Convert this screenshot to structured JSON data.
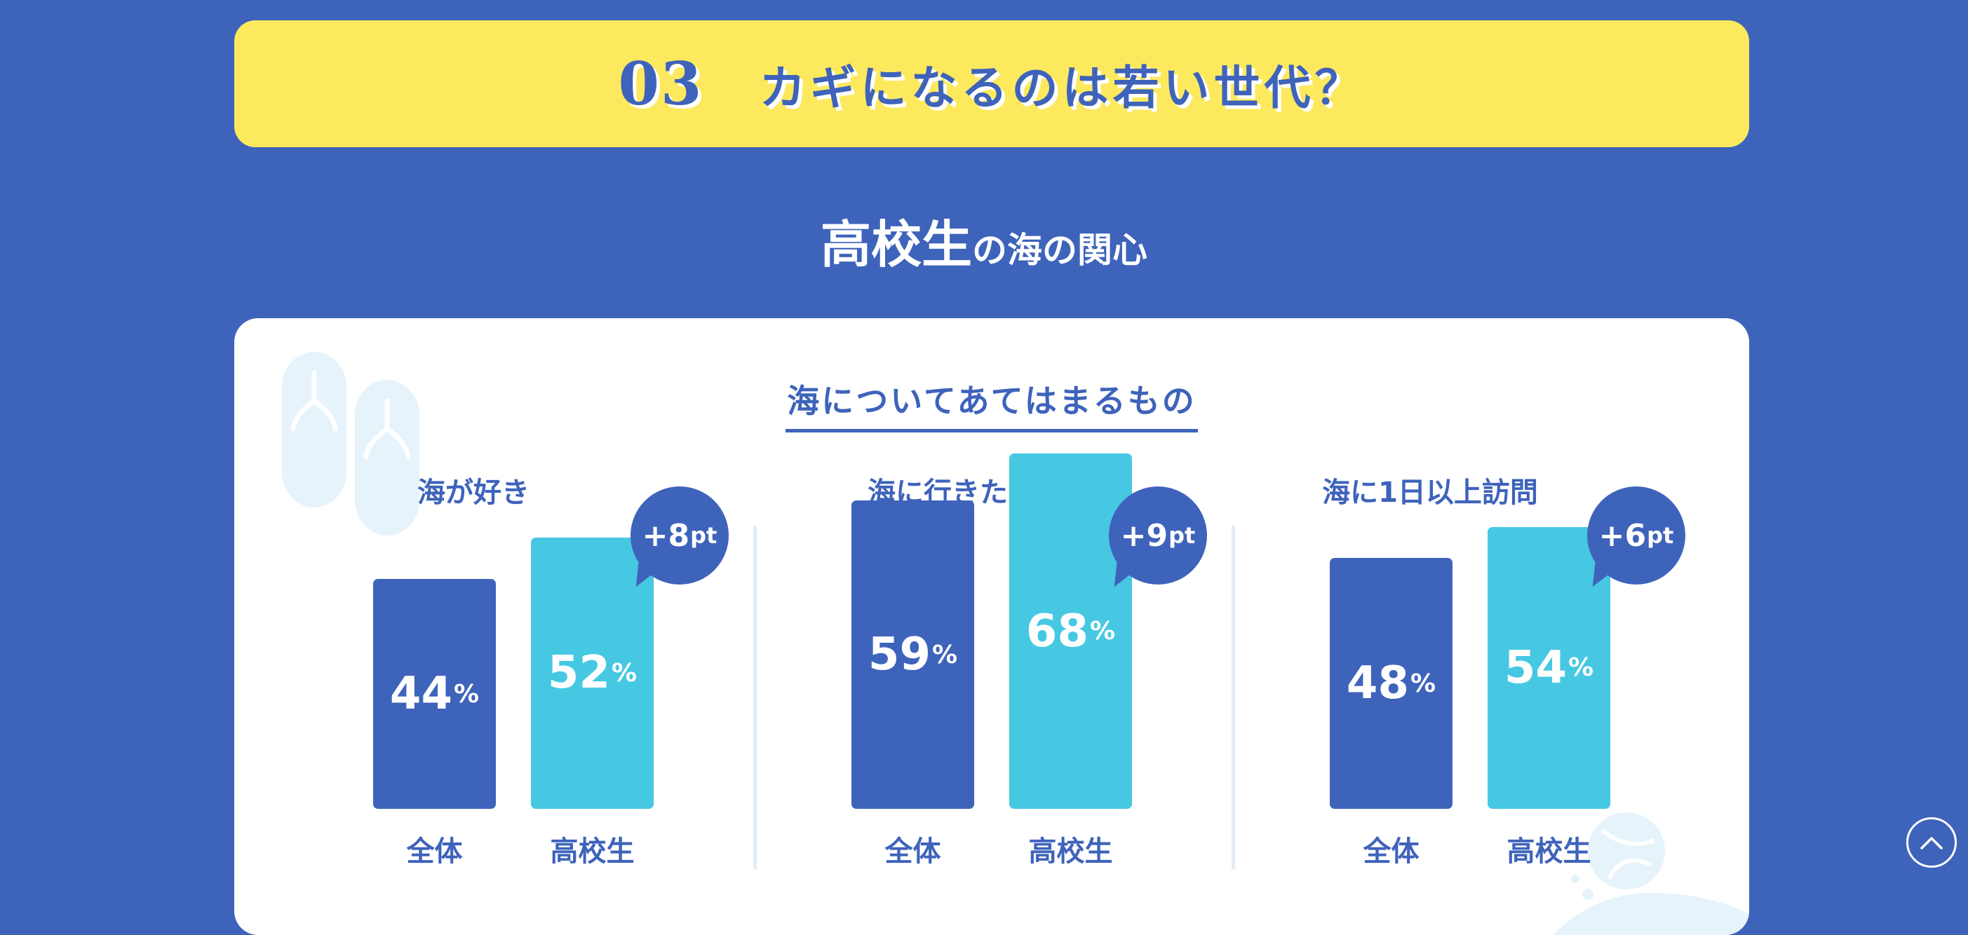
{
  "banner": {
    "number": "03",
    "title": "カギになるのは若い世代？"
  },
  "subtitle": {
    "emphasis": "高校生",
    "rest": "の海の関心"
  },
  "section_title": "海についてあてはまるもの",
  "colors": {
    "background": "#3e63bb",
    "banner": "#fde95e",
    "all_bar": "#3e63bb",
    "hs_bar": "#46c8e3"
  },
  "icons": {
    "decoration_left": "sandals-icon",
    "decoration_right": "beach-ball-icon",
    "scroll": "chevron-up-icon"
  },
  "chart_data": {
    "type": "bar",
    "title": "海についてあてはまるもの",
    "unit": "%",
    "diff_unit": "pt",
    "series_labels": [
      "全体",
      "高校生"
    ],
    "groups": [
      {
        "label": "海が好き",
        "all": 44,
        "hs": 52,
        "diff": "+8"
      },
      {
        "label": "海に行きたい",
        "all": 59,
        "hs": 68,
        "diff": "+9"
      },
      {
        "label": "海に1日以上訪問",
        "all": 48,
        "hs": 54,
        "diff": "+6"
      }
    ]
  }
}
